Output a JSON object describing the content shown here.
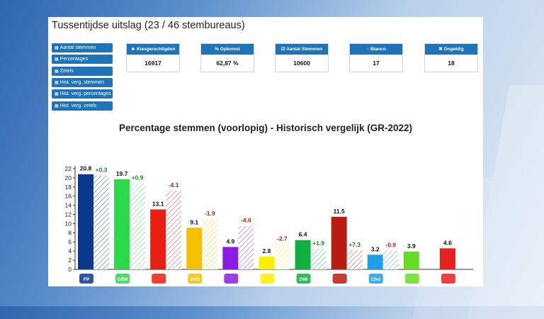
{
  "page": {
    "title": "Tussentijdse uitslag (23 / 46 stembureaus)"
  },
  "sidebar": {
    "items": [
      {
        "label": "Aantal stemmen",
        "icon": "bar-chart-icon"
      },
      {
        "label": "Percentages",
        "icon": "bar-chart-icon"
      },
      {
        "label": "Zetels",
        "icon": "bar-chart-icon"
      },
      {
        "label": "Hist. verg. stemmen",
        "icon": "bar-chart-icon"
      },
      {
        "label": "Hist. verg. percentages",
        "icon": "bar-chart-icon"
      },
      {
        "label": "Hist. verg. zetels",
        "icon": "bar-chart-icon"
      }
    ]
  },
  "stats": [
    {
      "label": "Kiesgerechtigden",
      "icon": "users-icon",
      "value": "16917"
    },
    {
      "label": "Opkomst",
      "icon": "percent-icon",
      "value": "62,87 %"
    },
    {
      "label": "Aantal Stemmen",
      "icon": "check-square-icon",
      "value": "10600"
    },
    {
      "label": "Blanco",
      "icon": "circle-icon",
      "value": "17"
    },
    {
      "label": "Ongeldig",
      "icon": "x-icon",
      "value": "18"
    }
  ],
  "colors": {
    "button": "#1f73b9",
    "positive": "#1a8a1a",
    "negative": "#c01818"
  },
  "chart_data": {
    "type": "bar",
    "title": "Percentage stemmen (voorlopig) - Historisch vergelijk (GR-2022)",
    "ylim": [
      0,
      22
    ],
    "yticks": [
      "0",
      "2",
      "4",
      "6",
      "8",
      "10",
      "12",
      "14",
      "16",
      "18",
      "20",
      "22"
    ],
    "grid": false,
    "series": [
      {
        "color": "#0b3a8c",
        "value": 20.8,
        "label": "20.8",
        "prev": 20.5,
        "diff": "+0.3",
        "logo_text": "FP"
      },
      {
        "color": "#2ad84a",
        "value": 19.7,
        "label": "19.7",
        "prev": 18.8,
        "diff": "+0.9",
        "logo_text": "GBM"
      },
      {
        "color": "#e81e10",
        "value": 13.1,
        "label": "13.1",
        "prev": 17.2,
        "diff": "-4.1",
        "logo_text": ""
      },
      {
        "color": "#f5c000",
        "value": 9.1,
        "label": "9.1",
        "prev": 11.0,
        "diff": "-1.9",
        "logo_text": "VVD"
      },
      {
        "color": "#8a1ee0",
        "value": 4.9,
        "label": "4.9",
        "prev": 9.5,
        "diff": "-4.6",
        "logo_text": ""
      },
      {
        "color": "#ffee00",
        "value": 2.8,
        "label": "2.8",
        "prev": 5.5,
        "diff": "-2.7",
        "logo_text": ""
      },
      {
        "color": "#10b040",
        "value": 6.4,
        "label": "6.4",
        "prev": 4.5,
        "diff": "+1.9",
        "logo_text": "D66"
      },
      {
        "color": "#b81c10",
        "value": 11.5,
        "label": "11.5",
        "prev": 4.2,
        "diff": "+7.3",
        "logo_text": ""
      },
      {
        "color": "#1ea0e8",
        "value": 3.2,
        "label": "3.2",
        "prev": 4.1,
        "diff": "-0.9",
        "logo_text": "Christen Unie"
      },
      {
        "color": "#66dd22",
        "value": 3.9,
        "label": "3.9",
        "prev": null,
        "diff": "",
        "logo_text": ""
      },
      {
        "color": "#e82020",
        "value": 4.6,
        "label": "4.6",
        "prev": null,
        "diff": "",
        "logo_text": ""
      }
    ]
  }
}
